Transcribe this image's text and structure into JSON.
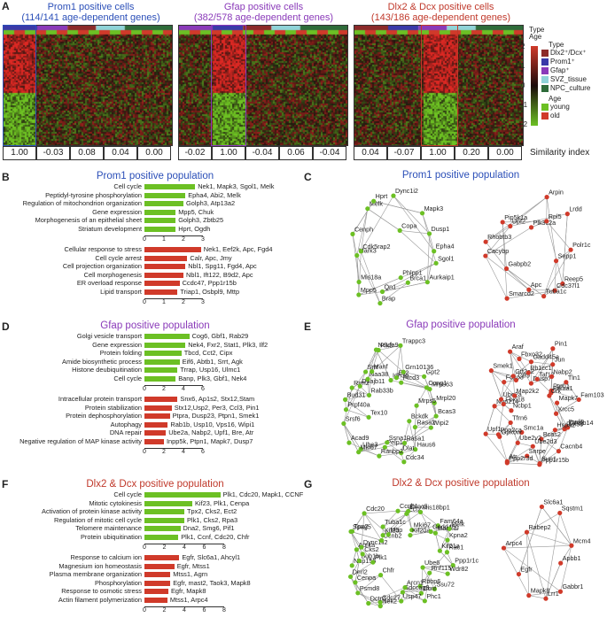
{
  "colors": {
    "blue": "#2b4fb8",
    "purple": "#8a3ab9",
    "red": "#c0392b",
    "green": "#6cc024",
    "bar_red": "#d03a2a"
  },
  "panels": {
    "A": "A",
    "B": "B",
    "C": "C",
    "D": "D",
    "E": "E",
    "F": "F",
    "G": "G"
  },
  "heatmaps": [
    {
      "title": "Prom1 positive cells",
      "subtitle": "(114/141 age-dependent genes)",
      "color": "blue"
    },
    {
      "title": "Gfap positive cells",
      "subtitle": "(382/578 age-dependent genes)",
      "color": "purple"
    },
    {
      "title": "Dlx2 & Dcx positive cells",
      "subtitle": "(143/186 age-dependent genes)",
      "color": "red"
    }
  ],
  "similarity": {
    "label": "Similarity index",
    "rows": [
      [
        "1.00",
        "-0.03",
        "0.08",
        "0.04",
        "0.00"
      ],
      [
        "-0.02",
        "1.00",
        "-0.04",
        "0.06",
        "-0.04"
      ],
      [
        "0.04",
        "-0.07",
        "1.00",
        "0.20",
        "0.00"
      ]
    ]
  },
  "legend": {
    "type_title": "Type",
    "age_title": "Age",
    "type_header": "Type",
    "types": [
      {
        "label": "Dlx2⁺/Dcx⁺",
        "color": "#8b2a2a"
      },
      {
        "label": "Prom1⁺",
        "color": "#3a3aa8"
      },
      {
        "label": "Gfap⁺",
        "color": "#8a3ab9"
      },
      {
        "label": "SVZ_tissue",
        "color": "#8fd3d8"
      },
      {
        "label": "NPC_culture",
        "color": "#2e6b3a"
      }
    ],
    "ages": [
      {
        "label": "young",
        "color": "#6cc024"
      },
      {
        "label": "old",
        "color": "#d03a2a"
      }
    ],
    "scale": [
      "2",
      "1",
      "0",
      "-1",
      "-2"
    ]
  },
  "B": {
    "title": "Prom1 positive population",
    "up": [
      {
        "term": "Cell cycle",
        "genes": "Nek1, Mapk3, Sgol1, Melk",
        "v": 2.6
      },
      {
        "term": "Peptidyl-tyrosine phosphorylation",
        "genes": "Epha4, Abi2, Melk",
        "v": 2.1
      },
      {
        "term": "Regulation of mitochondrion organization",
        "genes": "Golph3, Atp13a2",
        "v": 2.0
      },
      {
        "term": "Gene expression",
        "genes": "Mpp5, Chuk",
        "v": 1.6
      },
      {
        "term": "Morphogenesis of an epithelial sheet",
        "genes": "Golph3, Zbtb25",
        "v": 1.6
      },
      {
        "term": "Striatum development",
        "genes": "Hprt, Ogdh",
        "v": 1.6
      }
    ],
    "down": [
      {
        "term": "Cellular response to stress",
        "genes": "Nek1, Eef2k, Apc, Fgd4",
        "v": 2.9
      },
      {
        "term": "Cell cycle arrest",
        "genes": "Calr, Apc, Jmy",
        "v": 2.2
      },
      {
        "term": "Cell projection organization",
        "genes": "Nbl1, Spg11, Fgd4, Apc",
        "v": 2.1
      },
      {
        "term": "Cell morphogenesis",
        "genes": "Nbl1, Ift122, B9d2, Apc",
        "v": 2.0
      },
      {
        "term": "ER overload response",
        "genes": "Ccdc47, Ppp1r15b",
        "v": 1.8
      },
      {
        "term": "Lipid transport",
        "genes": "Triap1, Osbpl9, Mttp",
        "v": 1.7
      }
    ],
    "ticks": [
      "0",
      "1",
      "2",
      "3"
    ]
  },
  "D": {
    "title": "Gfap positive population",
    "up": [
      {
        "term": "Golgi vesicle transport",
        "genes": "Cog6, Gbf1, Rab29",
        "v": 4.6
      },
      {
        "term": "Gene expression",
        "genes": "Nek4, Fxr2, Stat1, Plk3, Ilf2",
        "v": 4.2
      },
      {
        "term": "Protein folding",
        "genes": "Tbcd, Cct2, Cipx",
        "v": 3.8
      },
      {
        "term": "Amide biosynthetic process",
        "genes": "Eif6, Abtb1, Srrt, Agk",
        "v": 3.6
      },
      {
        "term": "Histone deubiquitination",
        "genes": "Trrap, Usp16, Ulmc1",
        "v": 3.4
      },
      {
        "term": "Cell cycle",
        "genes": "Banp, Plk3, Gbf1, Nek4",
        "v": 3.2
      }
    ],
    "down": [
      {
        "term": "Intracellular protein transport",
        "genes": "Snx6, Ap1s2, Stx12,Stam",
        "v": 3.4
      },
      {
        "term": "Protein stabilization",
        "genes": "Stx12,Usp2, Per3, Ccl3, Pin1",
        "v": 2.8
      },
      {
        "term": "Protein dephosphorylation",
        "genes": "Ptpra, Dusp23, Ptpn1, Smek1",
        "v": 2.6
      },
      {
        "term": "Autophagy",
        "genes": "Rab1b, Usp10, Vps16, Wipi1",
        "v": 2.4
      },
      {
        "term": "DNA repair",
        "genes": "Ube2a, Nabp2, Upf1, Bre, Atr",
        "v": 2.2
      },
      {
        "term": "Negative regulation of MAP kinase activity",
        "genes": "Inpp5k, Ptpn1, Mapk7, Dusp7",
        "v": 2.0
      }
    ],
    "ticks": [
      "0",
      "2",
      "4",
      "6"
    ]
  },
  "F": {
    "title": "Dlx2 & Dcx positive population",
    "up": [
      {
        "term": "Cell cycle",
        "genes": "Plk1, Cdc20, Mapk1, CCNF",
        "v": 7.6
      },
      {
        "term": "Mitotic cytokinesis",
        "genes": "Kif23, Plk1, Cenpa",
        "v": 4.8
      },
      {
        "term": "Activation of protein kinase activity",
        "genes": "Tpx2, Cks2, Ect2",
        "v": 4.0
      },
      {
        "term": "Regulation of mitotic cell cycle",
        "genes": "Plk1, Cks2, Rpa3",
        "v": 4.0
      },
      {
        "term": "Telomere maintenance",
        "genes": "Dna2, Smg6, Pif1",
        "v": 3.6
      },
      {
        "term": "Protein ubiquitination",
        "genes": "Plk1, Ccnf, Cdc20, Chfr",
        "v": 3.4
      }
    ],
    "down": [
      {
        "term": "Response to calcium ion",
        "genes": "Egfr, Slc6a1, Ahcyl1",
        "v": 3.5
      },
      {
        "term": "Magnesium ion homeostasis",
        "genes": "Egfr, Mtss1",
        "v": 3.0
      },
      {
        "term": "Plasma membrane organization",
        "genes": "Mtss1, Agrn",
        "v": 2.6
      },
      {
        "term": "Phosphorylation",
        "genes": "Egfr, mast2, Taok3, Mapk8",
        "v": 2.6
      },
      {
        "term": "Response to osmotic stress",
        "genes": "Egfr, Mapk8",
        "v": 2.4
      },
      {
        "term": "Actin filament polymerization",
        "genes": "Mtss1, Arpc4",
        "v": 2.3
      }
    ],
    "ticks": [
      "0",
      "2",
      "4",
      "6",
      "8"
    ]
  },
  "C": {
    "title": "Prom1 positive population",
    "green": [
      "Sgol1",
      "Aurkaip1",
      "Brca1",
      "Phlpp1",
      "Qn1",
      "Brap",
      "Mpp5",
      "Mis18a",
      "Mark3",
      "Cdk5rap2",
      "Cenph",
      "Melk",
      "Hprt",
      "Dync1i2",
      "Copa",
      "Mapk3",
      "Dusp1",
      "Epha4"
    ],
    "red": [
      "Sepp1",
      "Reep5",
      "Cdc37l1",
      "Tuba1c",
      "Apc",
      "Smarcd2",
      "Gabpb2",
      "Cacybp",
      "Rhobtb3",
      "Pip5k1a",
      "Upf2",
      "Plk3c2a",
      "Arpin",
      "Rpl5",
      "Lrdd",
      "Polr1c"
    ]
  },
  "E": {
    "title": "Gfap positive population",
    "green": [
      "Bcas3",
      "Wipi2",
      "Rasa2",
      "Bckdk",
      "Rasa1",
      "Haus6",
      "Cdc34",
      "Dlat",
      "Pelp1",
      "Ssna1",
      "Ranbp2",
      "Ube3",
      "Mki67",
      "Acad9",
      "Tex10",
      "Srsf6",
      "Prpf40a",
      "Bud31",
      "Rrm2",
      "Dnajb11",
      "Rab33b",
      "Srrt",
      "Naa38",
      "Manf",
      "Ndufa9",
      "Pik3",
      "Idh3g",
      "Trappc3",
      "Ell2",
      "Grn10136",
      "Ptcd3",
      "Gpt2",
      "Ccng1",
      "Mrps63",
      "Mrpl20",
      "Mrps5"
    ],
    "red": [
      "Xrcc5",
      "Dnajb14",
      "Prpf6",
      "Rnf38",
      "Hspa2",
      "Cacnb4",
      "Bcas2",
      "Sun1",
      "Ppp1r15b",
      "Snrpe",
      "Ube2d3",
      "Smc1a",
      "Ppp2r3d",
      "Ube2v2",
      "Atr",
      "Gpkow",
      "Tfrn6",
      "Ppp2ca",
      "Upf1",
      "Ncbp1",
      "Nup214",
      "Fbxl18",
      "Ube2a",
      "Map2k2",
      "Smek1",
      "Foxo3",
      "Gtf2a2",
      "Ctr9",
      "Fbxo32",
      "Araf",
      "Gadd45a",
      "Rb1cc1",
      "Dusp7",
      "Taf12",
      "Jun",
      "Pin1",
      "Nabp2",
      "Prkaa1",
      "Ptpn1",
      "Tln1",
      "Crk",
      "Fam103a1",
      "Mapk7"
    ]
  },
  "G": {
    "title": "Dlx2 & Dcx positive population",
    "green": [
      "Ppp1r1c",
      "Wdr82",
      "Rnf115",
      "Ube6",
      "Rbbp6",
      "Ssu72",
      "Phc1",
      "Ccnf",
      "Sdccag8",
      "Arcn1",
      "Usp47",
      "Cdc27",
      "Nek2",
      "Dctn1",
      "Chfr",
      "Psmd8",
      "Cenpa",
      "Derl2",
      "Nup155",
      "Bub1b",
      "Plk1",
      "Aurka",
      "Cks2",
      "Dync1li2",
      "Spag5",
      "Tpx2",
      "Ccnb2",
      "Cdc20",
      "Kif23",
      "Tuba1c",
      "Mbp",
      "Ccnb1",
      "Ect2",
      "Exoc5",
      "Mis18bp1",
      "Mki67",
      "Kif20a",
      "Fam64a",
      "Gadd45g",
      "Mapk1",
      "Melk",
      "Kpna2",
      "Kif21a",
      "Rac1"
    ],
    "red": [
      "Apbb1",
      "Gabbr1",
      "Lrr1",
      "Mapk8",
      "Egfr",
      "Arpc4",
      "Rabep2",
      "Slc6a1",
      "Sqstm1",
      "Mcm4"
    ]
  }
}
